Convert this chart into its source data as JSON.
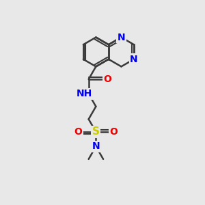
{
  "background_color": "#e8e8e8",
  "atom_colors": {
    "C": "#3a3a3a",
    "N": "#0000ee",
    "O": "#ee0000",
    "S": "#cccc00",
    "H": "#3a3a3a"
  },
  "bond_color": "#3a3a3a",
  "bond_width": 1.8,
  "fig_size": [
    3.0,
    3.0
  ],
  "dpi": 100
}
